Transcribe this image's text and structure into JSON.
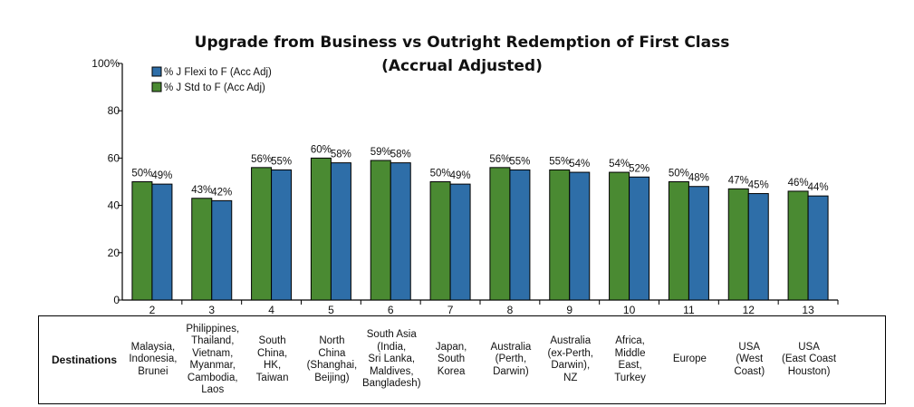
{
  "title": "Upgrade from Business vs Outright Redemption of First Class (Accrual Adjusted)",
  "colors": {
    "green": "#4a8a32",
    "blue": "#2e6ea8"
  },
  "chart_data": {
    "type": "bar",
    "title": "Upgrade from Business vs Outright Redemption of First Class (Accrual Adjusted)",
    "categories": [
      "2",
      "3",
      "4",
      "5",
      "6",
      "7",
      "8",
      "9",
      "10",
      "11",
      "12",
      "13"
    ],
    "series": [
      {
        "name": "% J Std to F (Acc Adj)",
        "color": "#4a8a32",
        "values": [
          50,
          43,
          56,
          60,
          59,
          50,
          56,
          55,
          54,
          50,
          47,
          46
        ],
        "labels": [
          "50%",
          "43%",
          "56%",
          "60%",
          "59%",
          "50%",
          "56%",
          "55%",
          "54%",
          "50%",
          "47%",
          "46%"
        ]
      },
      {
        "name": "% J Flexi to F (Acc Adj)",
        "color": "#2e6ea8",
        "values": [
          49,
          42,
          55,
          58,
          58,
          49,
          55,
          54,
          52,
          48,
          45,
          44
        ],
        "labels": [
          "49%",
          "42%",
          "55%",
          "58%",
          "58%",
          "49%",
          "55%",
          "54%",
          "52%",
          "48%",
          "45%",
          "44%"
        ]
      }
    ],
    "ylim": [
      0,
      100
    ],
    "yticks": [
      "0",
      "20",
      "40",
      "60",
      "80",
      "100%"
    ],
    "legend": [
      {
        "name": "% J Flexi to F (Acc Adj)",
        "color": "#2e6ea8"
      },
      {
        "name": "% J Std to F (Acc Adj)",
        "color": "#4a8a32"
      }
    ],
    "legend_position": "top-left",
    "grid": false
  },
  "destinations": {
    "header": "Destinations",
    "items": [
      "Malaysia,\nIndonesia,\nBrunei",
      "Philippines,\nThailand,\nVietnam,\nMyanmar,\nCambodia,\nLaos",
      "South\nChina,\nHK,\nTaiwan",
      "North\nChina\n(Shanghai,\nBeijing)",
      "South Asia\n(India,\nSri Lanka,\nMaldives,\nBangladesh)",
      "Japan,\nSouth\nKorea",
      "Australia\n(Perth,\nDarwin)",
      "Australia\n(ex-Perth,\nDarwin),\nNZ",
      "Africa,\nMiddle\nEast,\nTurkey",
      "Europe",
      "USA\n(West\nCoast)",
      "USA\n(East Coast\nHouston)"
    ]
  }
}
